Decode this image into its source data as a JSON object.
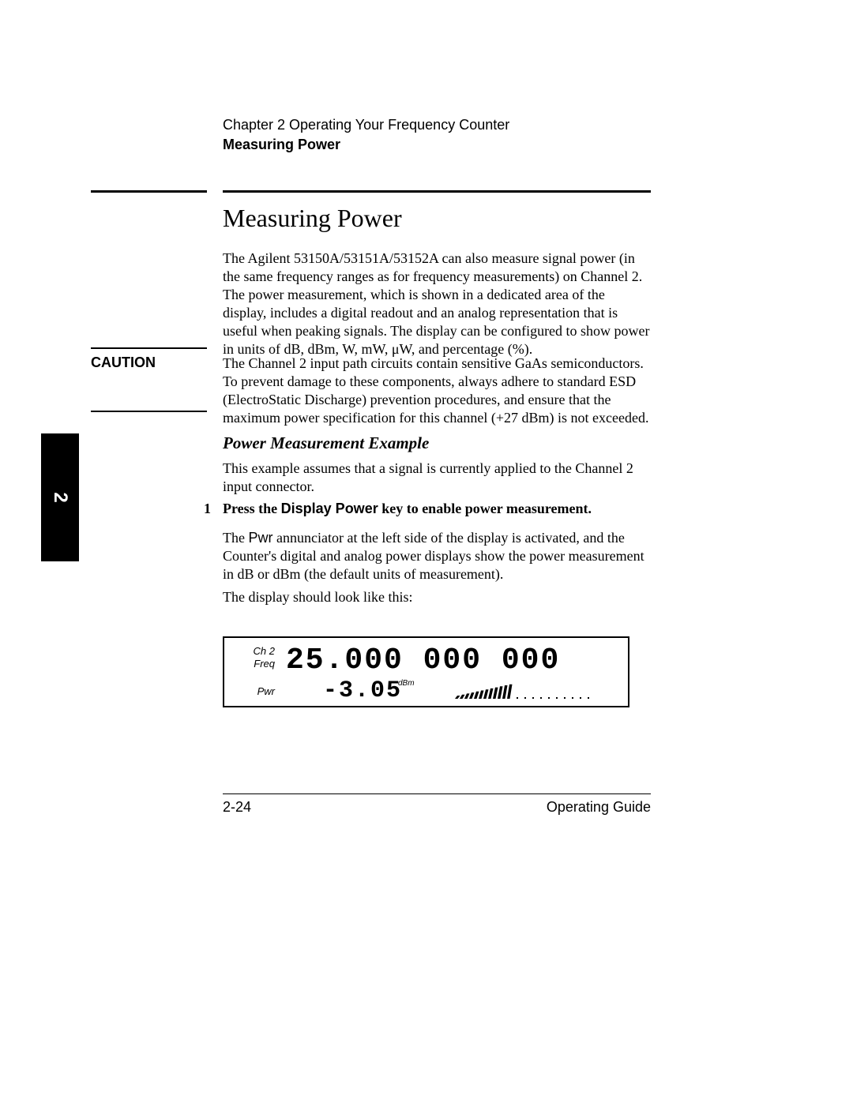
{
  "header": {
    "chapter_line": "Chapter 2  Operating Your Frequency Counter",
    "section_line": "Measuring Power"
  },
  "main_title": "Measuring Power",
  "intro_paragraph": "The Agilent 53150A/53151A/53152A can also measure signal power (in the same frequency ranges as for frequency measurements) on Channel 2. The power measurement, which is shown in a dedicated area of the display, includes a digital readout and an analog representation that is useful when peaking signals. The display can be configured to show power in units of dB, dBm, W, mW, μW, and percentage (%).",
  "caution": {
    "label": "CAUTION",
    "text": "The Channel 2 input path circuits contain sensitive GaAs semiconductors. To prevent damage to these components, always adhere to standard ESD (ElectroStatic Discharge) prevention procedures, and ensure that the maximum power specification for this channel (+27 dBm) is not exceeded."
  },
  "subheading": "Power Measurement Example",
  "example_intro": "This example assumes that a signal is currently applied to the Channel 2 input connector.",
  "step": {
    "number": "1",
    "prefix": "Press the ",
    "key_name": "Display Power",
    "suffix": " key to enable power measurement."
  },
  "after_step": {
    "prefix": "The ",
    "annunciator": "Pwr",
    "rest": " annunciator at the left side of the display is activated, and the Counter's digital and analog power displays show the power measurement in dB or dBm (the default units of measurement)."
  },
  "display_intro": "The display should look like this:",
  "lcd": {
    "ch_label": "Ch  2",
    "freq_label": "Freq",
    "pwr_label": "Pwr",
    "freq_value": "25.000 000 000",
    "power_value": "-3.05",
    "unit": "dBm",
    "bargraph": {
      "segments": 22,
      "lit": 12,
      "dot_count": 10,
      "lit_color": "#000000",
      "bg_color": "#ffffff"
    },
    "border_color": "#000000"
  },
  "footer": {
    "page_number": "2-24",
    "guide": "Operating Guide"
  },
  "side_tab": "2",
  "colors": {
    "text": "#000000",
    "background": "#ffffff",
    "rule": "#000000",
    "tab_bg": "#000000",
    "tab_fg": "#ffffff"
  },
  "typography": {
    "serif_family": "Times New Roman",
    "sans_family": "Arial",
    "body_pt": 13,
    "title_pt": 24,
    "subheading_pt": 16,
    "footer_pt": 13
  }
}
